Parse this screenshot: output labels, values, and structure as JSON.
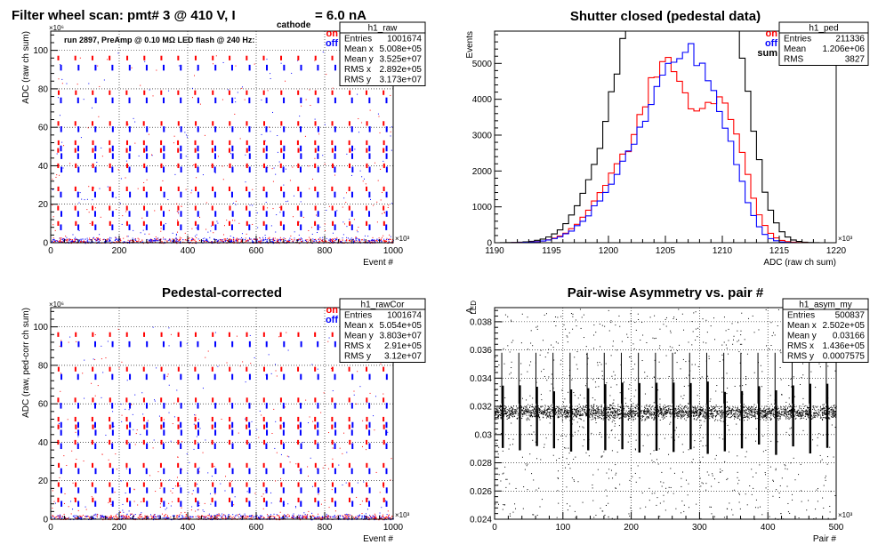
{
  "chart_data": [
    {
      "id": "raw",
      "type": "scatter",
      "title": "Filter wheel scan: pmt#   3 @   410 V, I",
      "title_subscript": "cathode",
      "title_suffix": "= 6.0 nA",
      "annotation": "run 2897, PreAmp @ 0.10 MΩ   LED flash @  240 Hz:",
      "xlabel": "Event #",
      "ylabel": "ADC (raw ch sum)",
      "x_exponent": "×10³",
      "y_exponent": "×10⁶",
      "xlim": [
        0,
        1000
      ],
      "ylim": [
        0,
        110
      ],
      "xticks": [
        0,
        200,
        400,
        600,
        800,
        1000
      ],
      "yticks": [
        0,
        20,
        40,
        60,
        80,
        100
      ],
      "grid": true,
      "legend": [
        {
          "label": "on",
          "color": "#ff0000"
        },
        {
          "label": "off",
          "color": "#0000ff"
        }
      ],
      "stats": {
        "name": "h1_raw",
        "rows": [
          {
            "label": "Entries",
            "value": "1001674"
          },
          {
            "label": "Mean x",
            "value": "5.008e+05"
          },
          {
            "label": "Mean y",
            "value": "3.525e+07"
          },
          {
            "label": "RMS x",
            "value": "2.892e+05"
          },
          {
            "label": "RMS y",
            "value": "3.173e+07"
          }
        ]
      },
      "bands": {
        "step_x": [
          25,
          75,
          125,
          175,
          225,
          275,
          325,
          375,
          425,
          475,
          525,
          575,
          625,
          675,
          725,
          775,
          825,
          875,
          925,
          975
        ],
        "levels": [
          96,
          78,
          62,
          52,
          48,
          40,
          28,
          18,
          10
        ],
        "blue_levels": [
          91,
          74,
          59,
          49,
          45,
          38,
          25,
          15,
          8
        ]
      }
    },
    {
      "id": "ped",
      "type": "histogram",
      "title": "Shutter closed (pedestal data)",
      "xlabel": "ADC (raw ch sum)",
      "ylabel": "Events",
      "x_exponent": "×10³",
      "xlim": [
        1190,
        1220
      ],
      "ylim": [
        0,
        5900
      ],
      "xticks": [
        1190,
        1195,
        1200,
        1205,
        1210,
        1215,
        1220
      ],
      "yticks": [
        0,
        1000,
        2000,
        3000,
        4000,
        5000
      ],
      "bin_width": 0.5,
      "bin_start": 1190,
      "grid": false,
      "legend": [
        {
          "label": "on",
          "color": "#ff0000"
        },
        {
          "label": "off",
          "color": "#0000ff"
        },
        {
          "label": "sum",
          "color": "#000000"
        }
      ],
      "stats": {
        "name": "h1_ped",
        "rows": [
          {
            "label": "Entries",
            "value": "211336"
          },
          {
            "label": "Mean",
            "value": "1.206e+06"
          },
          {
            "label": "RMS",
            "value": "3827"
          }
        ]
      },
      "series": [
        {
          "name": "sum",
          "color": "#000000",
          "peaks": [
            [
              1202.5,
              4700,
              3.0
            ],
            [
              1205.0,
              5600,
              2.2
            ],
            [
              1208.2,
              5650,
              2.3
            ],
            [
              1210.8,
              4000,
              1.9
            ]
          ]
        },
        {
          "name": "on",
          "color": "#ff0000",
          "peaks": [
            [
              1202.0,
              2300,
              2.8
            ],
            [
              1205.0,
              3150,
              1.6
            ],
            [
              1208.6,
              2500,
              2.3
            ],
            [
              1210.6,
              2000,
              1.6
            ]
          ]
        },
        {
          "name": "off",
          "color": "#0000ff",
          "peaks": [
            [
              1202.6,
              2300,
              3.0
            ],
            [
              1205.4,
              2600,
              1.8
            ],
            [
              1207.9,
              3150,
              1.6
            ],
            [
              1210.4,
              2100,
              1.6
            ]
          ]
        }
      ]
    },
    {
      "id": "rawCor",
      "type": "scatter",
      "title": "Pedestal-corrected",
      "xlabel": "Event #",
      "ylabel": "ADC (raw, ped-corr ch sum)",
      "x_exponent": "×10³",
      "y_exponent": "×10⁶",
      "xlim": [
        0,
        1000
      ],
      "ylim": [
        0,
        110
      ],
      "xticks": [
        0,
        200,
        400,
        600,
        800,
        1000
      ],
      "yticks": [
        0,
        20,
        40,
        60,
        80,
        100
      ],
      "grid": true,
      "legend": [
        {
          "label": "on",
          "color": "#ff0000"
        },
        {
          "label": "off",
          "color": "#0000ff"
        }
      ],
      "stats": {
        "name": "h1_rawCor",
        "rows": [
          {
            "label": "Entries",
            "value": "1001674"
          },
          {
            "label": "Mean x",
            "value": "5.054e+05"
          },
          {
            "label": "Mean y",
            "value": "3.803e+07"
          },
          {
            "label": "RMS x",
            "value": "2.91e+05"
          },
          {
            "label": "RMS y",
            "value": "3.12e+07"
          }
        ]
      },
      "bands": {
        "step_x": [
          25,
          75,
          125,
          175,
          225,
          275,
          325,
          375,
          425,
          475,
          525,
          575,
          625,
          675,
          725,
          775,
          825,
          875,
          925,
          975
        ],
        "levels": [
          96,
          78,
          62,
          52,
          48,
          40,
          28,
          18,
          10
        ],
        "blue_levels": [
          91,
          74,
          59,
          49,
          45,
          38,
          25,
          15,
          8
        ]
      }
    },
    {
      "id": "asym",
      "type": "scatter",
      "title": "Pair-wise Asymmetry vs. pair #",
      "xlabel": "Pair #",
      "ylabel": "A",
      "ylabel_subscript": "LED",
      "x_exponent": "×10³",
      "xlim": [
        0,
        500
      ],
      "ylim": [
        0.024,
        0.039
      ],
      "xticks": [
        0,
        100,
        200,
        300,
        400,
        500
      ],
      "yticks": [
        0.024,
        0.026,
        0.028,
        0.03,
        0.032,
        0.034,
        0.036,
        0.038
      ],
      "grid": true,
      "stats": {
        "name": "h1_asym_my",
        "rows": [
          {
            "label": "Entries",
            "value": "500837"
          },
          {
            "label": "Mean x",
            "value": "2.502e+05"
          },
          {
            "label": "Mean y",
            "value": "0.03166"
          },
          {
            "label": "RMS x",
            "value": "1.436e+05"
          },
          {
            "label": "RMS y",
            "value": "0.0007575"
          }
        ]
      },
      "band": {
        "center": 0.0316,
        "half_width": 0.0006
      },
      "spikes_x": [
        12,
        37,
        62,
        87,
        112,
        137,
        162,
        187,
        212,
        237,
        262,
        287,
        312,
        337,
        362,
        387,
        412,
        437,
        462,
        487
      ]
    }
  ]
}
